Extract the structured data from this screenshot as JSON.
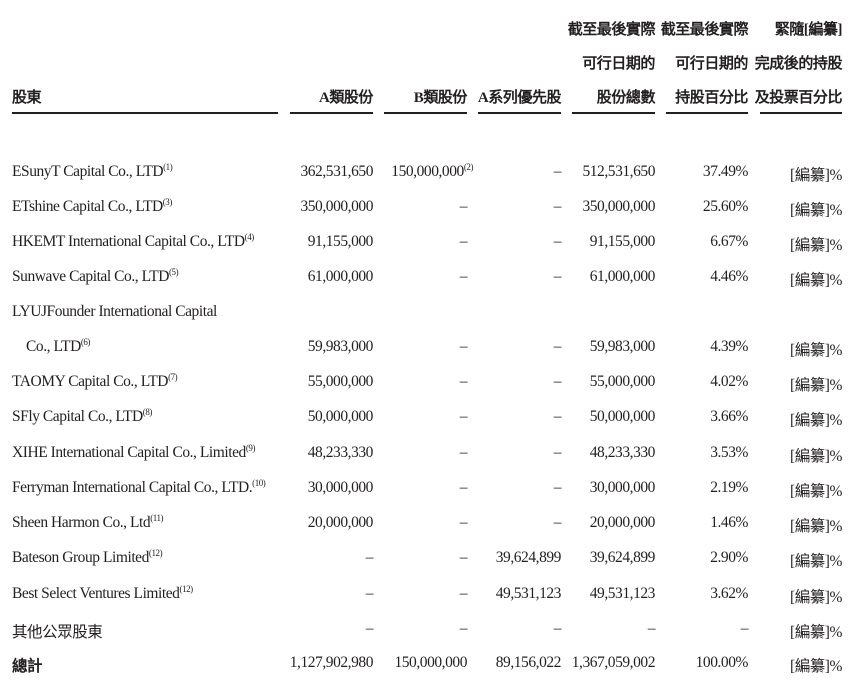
{
  "header": {
    "shareholder": "股東",
    "class_a": "A類股份",
    "class_b": "B類股份",
    "series_a": "A系列優先股",
    "total_shares": [
      "截至最後實際",
      "可行日期的",
      "股份總數"
    ],
    "pct_lpd": [
      "截至最後實際",
      "可行日期的",
      "持股百分比"
    ],
    "pct_post": [
      "緊隨[編纂]",
      "完成後的持股",
      "及投票百分比"
    ]
  },
  "rows": [
    {
      "name": "ESunyT Capital Co., LTD",
      "note": "(1)",
      "a": "362,531,650",
      "b": "150,000,000",
      "b_note": "(2)",
      "pref": "–",
      "total": "512,531,650",
      "pct": "37.49%",
      "post": "[編纂]%"
    },
    {
      "name": "ETshine Capital Co., LTD",
      "note": "(3)",
      "a": "350,000,000",
      "b": "–",
      "b_note": "",
      "pref": "–",
      "total": "350,000,000",
      "pct": "25.60%",
      "post": "[編纂]%"
    },
    {
      "name": "HKEMT International Capital Co., LTD",
      "note": "(4)",
      "a": "91,155,000",
      "b": "–",
      "b_note": "",
      "pref": "–",
      "total": "91,155,000",
      "pct": "6.67%",
      "post": "[編纂]%"
    },
    {
      "name": "Sunwave Capital Co., LTD",
      "note": "(5)",
      "a": "61,000,000",
      "b": "–",
      "b_note": "",
      "pref": "–",
      "total": "61,000,000",
      "pct": "4.46%",
      "post": "[編纂]%"
    },
    {
      "name": "LYUJFounder International Capital",
      "name2": "Co., LTD",
      "note": "(6)",
      "a": "59,983,000",
      "b": "–",
      "b_note": "",
      "pref": "–",
      "total": "59,983,000",
      "pct": "4.39%",
      "post": "[編纂]%"
    },
    {
      "name": "TAOMY Capital Co., LTD",
      "note": "(7)",
      "a": "55,000,000",
      "b": "–",
      "b_note": "",
      "pref": "–",
      "total": "55,000,000",
      "pct": "4.02%",
      "post": "[編纂]%"
    },
    {
      "name": "SFly Capital Co., LTD",
      "note": "(8)",
      "a": "50,000,000",
      "b": "–",
      "b_note": "",
      "pref": "–",
      "total": "50,000,000",
      "pct": "3.66%",
      "post": "[編纂]%"
    },
    {
      "name": "XIHE International Capital Co., Limited",
      "note": "(9)",
      "a": "48,233,330",
      "b": "–",
      "b_note": "",
      "pref": "–",
      "total": "48,233,330",
      "pct": "3.53%",
      "post": "[編纂]%"
    },
    {
      "name": "Ferryman International Capital Co., LTD.",
      "note": "(10)",
      "a": "30,000,000",
      "b": "–",
      "b_note": "",
      "pref": "–",
      "total": "30,000,000",
      "pct": "2.19%",
      "post": "[編纂]%"
    },
    {
      "name": "Sheen Harmon Co., Ltd",
      "note": "(11)",
      "a": "20,000,000",
      "b": "–",
      "b_note": "",
      "pref": "–",
      "total": "20,000,000",
      "pct": "1.46%",
      "post": "[編纂]%"
    },
    {
      "name": "Bateson Group Limited",
      "note": "(12)",
      "a": "–",
      "b": "–",
      "b_note": "",
      "pref": "39,624,899",
      "total": "39,624,899",
      "pct": "2.90%",
      "post": "[編纂]%"
    },
    {
      "name": "Best Select Ventures Limited",
      "note": "(12)",
      "a": "–",
      "b": "–",
      "b_note": "",
      "pref": "49,531,123",
      "total": "49,531,123",
      "pct": "3.62%",
      "post": "[編纂]%"
    },
    {
      "name": "其他公眾股東",
      "note": "",
      "a": "–",
      "b": "–",
      "b_note": "",
      "pref": "–",
      "total": "–",
      "pct": "–",
      "post": "[編纂]%"
    }
  ],
  "total": {
    "name": "總計",
    "a": "1,127,902,980",
    "b": "150,000,000",
    "pref": "89,156,022",
    "total": "1,367,059,002",
    "pct": "100.00%",
    "post": "[編纂]%"
  }
}
